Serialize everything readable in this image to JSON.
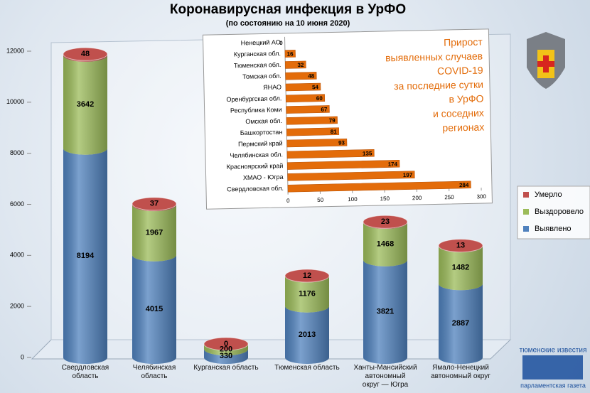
{
  "chart_data": [
    {
      "type": "stacked-cylinder",
      "title": "Коронавирусная инфекция в УрФО",
      "subtitle": "(по состоянию на 10 июня 2020)",
      "categories": [
        "Свердловская\nобласть",
        "Челябинская\nобласть",
        "Курганская область",
        "Тюменская область",
        "Ханты-Мансийский\nавтономный\nокруг — Югра",
        "Ямало-Ненецкий\nавтономный округ"
      ],
      "series": [
        {
          "name": "Выявлено",
          "color": "#4f81bd",
          "values": [
            8194,
            4015,
            330,
            2013,
            3821,
            2887
          ]
        },
        {
          "name": "Выздоровело",
          "color": "#9bbb59",
          "values": [
            3642,
            1967,
            200,
            1176,
            1468,
            1482
          ]
        },
        {
          "name": "Умерло",
          "color": "#c0504d",
          "values": [
            48,
            37,
            0,
            12,
            23,
            13
          ]
        }
      ],
      "ylim": [
        0,
        12000
      ],
      "yticks": [
        0,
        2000,
        4000,
        6000,
        8000,
        10000,
        12000
      ],
      "grid": false,
      "legend": "right"
    },
    {
      "type": "hbar",
      "title": "Прирост\nвыявленных случаев\nCOVID-19\nза последние сутки\nв УрФО\nи соседних\nрегионах",
      "categories": [
        "Ненецкий АО",
        "Курганская обл.",
        "Тюменская обл.",
        "Томская обл.",
        "ЯНАО",
        "Оренбургская обл.",
        "Республика Коми",
        "Омская обл.",
        "Башкортостан",
        "Пермский край",
        "Челябинская обл.",
        "Красноярский край",
        "ХМАО - Югра",
        "Свердловская обл."
      ],
      "values": [
        0,
        16,
        32,
        48,
        54,
        60,
        67,
        79,
        81,
        93,
        135,
        174,
        197,
        284
      ],
      "color": "#e36c0a",
      "xlim": [
        0,
        300
      ],
      "xticks": [
        0,
        50,
        100,
        150,
        200,
        250,
        300
      ]
    }
  ],
  "logo": {
    "top": "тюменские известия",
    "bottom": "парламентская газета"
  }
}
